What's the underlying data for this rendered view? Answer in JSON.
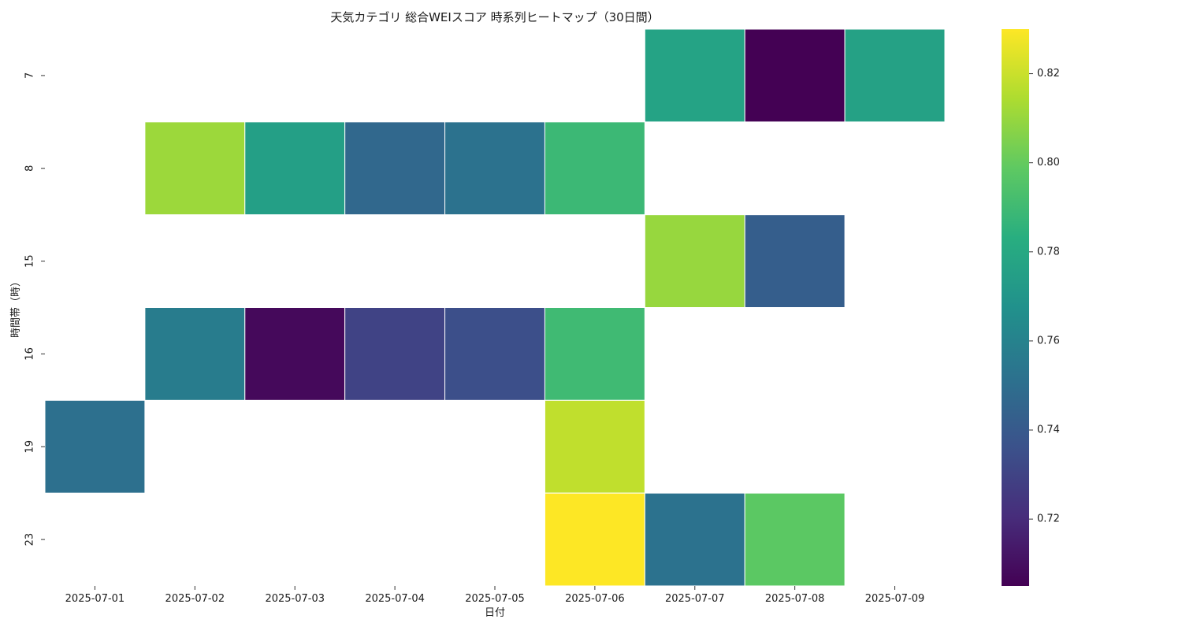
{
  "chart_data": {
    "type": "heatmap",
    "title": "天気カテゴリ 総合WEIスコア 時系列ヒートマップ（30日間）",
    "xlabel": "日付",
    "ylabel": "時間帯（時）",
    "x_categories": [
      "2025-07-01",
      "2025-07-02",
      "2025-07-03",
      "2025-07-04",
      "2025-07-05",
      "2025-07-06",
      "2025-07-07",
      "2025-07-08",
      "2025-07-09"
    ],
    "y_categories": [
      "7",
      "8",
      "15",
      "16",
      "19",
      "23"
    ],
    "values": [
      [
        null,
        null,
        null,
        null,
        null,
        null,
        0.777,
        0.705,
        0.776
      ],
      [
        null,
        0.811,
        0.775,
        0.747,
        0.752,
        0.789,
        null,
        null,
        null
      ],
      [
        null,
        null,
        null,
        null,
        null,
        null,
        0.81,
        0.742,
        null
      ],
      [
        null,
        0.757,
        0.708,
        0.73,
        0.735,
        0.79,
        null,
        null,
        null
      ],
      [
        0.751,
        null,
        null,
        null,
        null,
        0.818,
        null,
        null,
        null
      ],
      [
        null,
        null,
        null,
        null,
        null,
        0.83,
        0.752,
        0.798,
        null
      ]
    ],
    "colormap": "viridis",
    "colorbar": {
      "vmin": 0.705,
      "vmax": 0.83,
      "ticks": [
        0.72,
        0.74,
        0.76,
        0.78,
        0.8,
        0.82
      ],
      "tick_labels": [
        "0.72",
        "0.74",
        "0.76",
        "0.78",
        "0.80",
        "0.82"
      ]
    },
    "missing_color": "#ffffff",
    "cell_border_color": "#ffffff"
  }
}
